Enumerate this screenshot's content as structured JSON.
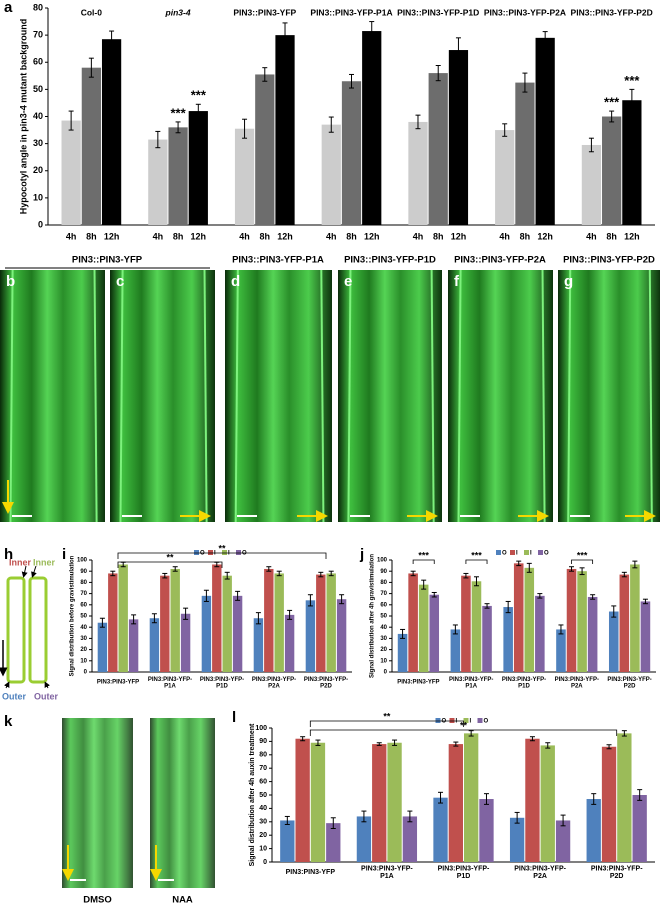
{
  "chart_data": [
    {
      "type": "bar",
      "panel": "a",
      "y_label": "Hypocotyl angle in pin3-4 mutant background",
      "categories": [
        "Col-0",
        "pin3-4",
        "PIN3::PIN3-YFP",
        "PIN3::PIN3-YFP-P1A",
        "PIN3::PIN3-YFP-P1D",
        "PIN3::PIN3-YFP-P2A",
        "PIN3::PIN3-YFP-P2D"
      ],
      "series": [
        {
          "name": "4h",
          "color": "#cccccc",
          "values": [
            38.5,
            31.5,
            35.5,
            37,
            38,
            35,
            29.5
          ],
          "errors": [
            3.5,
            3,
            3.5,
            2.8,
            2.5,
            2.3,
            2.5
          ]
        },
        {
          "name": "8h",
          "color": "#6d6d6d",
          "values": [
            58,
            36,
            55.5,
            53,
            56,
            52.5,
            40
          ],
          "errors": [
            3.5,
            2,
            2.5,
            2.5,
            2.8,
            3.5,
            2
          ],
          "significance": [
            null,
            "***",
            null,
            null,
            null,
            null,
            "***"
          ]
        },
        {
          "name": "12h",
          "color": "#000000",
          "values": [
            68.5,
            42,
            70,
            71.5,
            64.5,
            69,
            46
          ],
          "errors": [
            3,
            2.5,
            4.5,
            3.5,
            4.5,
            2.3,
            4
          ],
          "significance": [
            null,
            "***",
            null,
            null,
            null,
            null,
            "***"
          ]
        }
      ],
      "ylim": [
        0,
        80
      ],
      "yticks": [
        0,
        10,
        20,
        30,
        40,
        50,
        60,
        70,
        80
      ]
    },
    {
      "type": "bar",
      "panel": "i",
      "y_label": "Signal distribution before gravistimulation",
      "categories": [
        "PIN3:PIN3-YFP",
        "PIN3:PIN3-YFP-P1A",
        "PIN3:PIN3-YFP-P1D",
        "PIN3:PIN3-YFP-P2A",
        "PIN3:PIN3-YFP-P2D"
      ],
      "series": [
        {
          "name": "O",
          "color": "#4f81bd",
          "values": [
            44,
            48,
            68,
            48,
            64
          ],
          "errors": [
            4,
            4,
            5,
            5,
            5
          ]
        },
        {
          "name": "I",
          "color": "#c0504d",
          "values": [
            88,
            86,
            96,
            92,
            87
          ],
          "errors": [
            2,
            2,
            2,
            2,
            2
          ]
        },
        {
          "name": "I",
          "color": "#9bbb59",
          "values": [
            96,
            92,
            86,
            88,
            88
          ],
          "errors": [
            2,
            2,
            3,
            2,
            2
          ]
        },
        {
          "name": "O",
          "color": "#8064a2",
          "values": [
            47,
            52,
            68,
            51,
            65
          ],
          "errors": [
            4,
            5,
            4,
            4,
            4
          ]
        }
      ],
      "annotations": [
        "**",
        "**"
      ],
      "ylim": [
        0,
        100
      ],
      "yticks": [
        0,
        10,
        20,
        30,
        40,
        50,
        60,
        70,
        80,
        90,
        100
      ]
    },
    {
      "type": "bar",
      "panel": "j",
      "y_label": "Signal distribution after 4h gravistimulation",
      "categories": [
        "PIN3:PIN3-YFP",
        "PIN3:PIN3-YFP-P1A",
        "PIN3:PIN3-YFP-P1D",
        "PIN3:PIN3-YFP-P2A",
        "PIN3:PIN3-YFP-P2D"
      ],
      "series": [
        {
          "name": "O",
          "color": "#4f81bd",
          "values": [
            34,
            38,
            58,
            38,
            54
          ],
          "errors": [
            4,
            4,
            5,
            4,
            5
          ]
        },
        {
          "name": "I",
          "color": "#c0504d",
          "values": [
            88,
            86,
            97,
            92,
            87
          ],
          "errors": [
            2,
            2,
            2,
            2,
            2
          ]
        },
        {
          "name": "I",
          "color": "#9bbb59",
          "values": [
            78,
            81,
            93,
            90,
            96
          ],
          "errors": [
            4,
            4,
            4,
            3,
            3
          ]
        },
        {
          "name": "O",
          "color": "#8064a2",
          "values": [
            69,
            59,
            68,
            67,
            63
          ],
          "errors": [
            2,
            2,
            2,
            2,
            2
          ]
        }
      ],
      "annotations": [
        "***",
        "***",
        "***"
      ],
      "ylim": [
        0,
        100
      ],
      "yticks": [
        0,
        10,
        20,
        30,
        40,
        50,
        60,
        70,
        80,
        90,
        100
      ]
    },
    {
      "type": "bar",
      "panel": "l",
      "y_label": "Signal distribution after 4h auxin treatment",
      "categories": [
        "PIN3:PIN3-YFP",
        "PIN3:PIN3-YFP-P1A",
        "PIN3:PIN3-YFP-P1D",
        "PIN3:PIN3-YFP-P2A",
        "PIN3:PIN3-YFP-P2D"
      ],
      "series": [
        {
          "name": "O",
          "color": "#4f81bd",
          "values": [
            31,
            34,
            48,
            33,
            47
          ],
          "errors": [
            3,
            4,
            4,
            4,
            4
          ]
        },
        {
          "name": "I",
          "color": "#c0504d",
          "values": [
            92,
            88,
            88,
            92,
            86
          ],
          "errors": [
            1.5,
            1,
            1.5,
            1.5,
            1.5
          ]
        },
        {
          "name": "I",
          "color": "#9bbb59",
          "values": [
            89,
            89,
            96,
            87,
            96
          ],
          "errors": [
            2,
            2,
            2,
            2,
            2
          ]
        },
        {
          "name": "O",
          "color": "#8064a2",
          "values": [
            29,
            34,
            47,
            31,
            50
          ],
          "errors": [
            4,
            4,
            4,
            4,
            4
          ]
        }
      ],
      "annotations": [
        "**",
        "**"
      ],
      "ylim": [
        0,
        100
      ],
      "yticks": [
        0,
        10,
        20,
        30,
        40,
        50,
        60,
        70,
        80,
        90,
        100
      ]
    }
  ],
  "images": {
    "labels": [
      "b",
      "c",
      "d",
      "e",
      "f",
      "g"
    ],
    "titles": [
      "PIN3::PIN3-YFP",
      "PIN3::PIN3-YFP-P1A",
      "PIN3::PIN3-YFP-P1D",
      "PIN3::PIN3-YFP-P2A",
      "PIN3::PIN3-YFP-P2D"
    ]
  },
  "diagram": {
    "label": "h",
    "inner": "Inner",
    "outer": "Outer"
  },
  "treatment": {
    "label": "k",
    "captions": [
      "DMSO",
      "NAA"
    ]
  }
}
